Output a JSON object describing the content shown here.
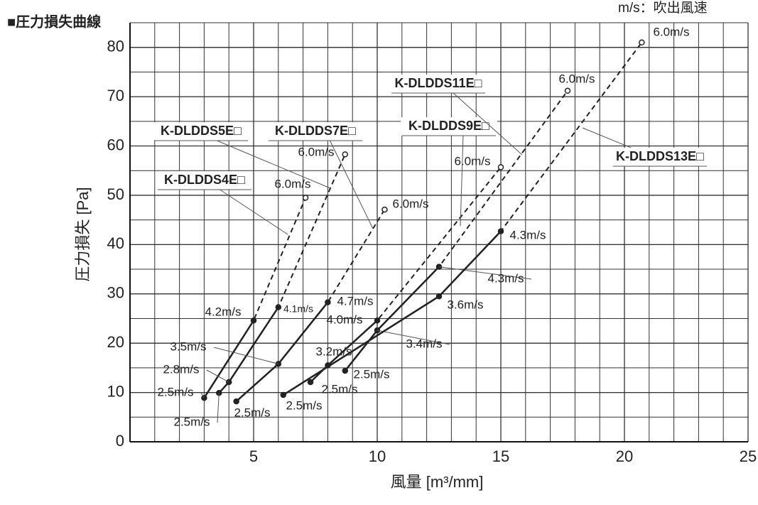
{
  "chart_data": {
    "type": "line",
    "title": "■圧力損失曲線",
    "subtitle": "m/s：吹出風速",
    "x_label": "風量 [m³/mm]",
    "y_label": "圧力損失 [Pa]",
    "xlim": [
      0,
      25
    ],
    "xticks": [
      5,
      10,
      15,
      20,
      25
    ],
    "ylim": [
      0,
      85
    ],
    "yticks": [
      0,
      10,
      20,
      30,
      40,
      50,
      60,
      70,
      80
    ],
    "grid": true,
    "series": [
      {
        "name": "K-DLDDS4E□",
        "color": "#222222",
        "x": [
          3.0,
          5.0,
          7.1
        ],
        "values": [
          8.9,
          24.6,
          49.5
        ],
        "point_labels": [
          "2.5m/s",
          "4.2m/s",
          "6.0m/s"
        ]
      },
      {
        "name": "K-DLDDS5E□",
        "color": "#222222",
        "x": [
          3.6,
          4.0,
          6.0,
          8.7
        ],
        "values": [
          9.9,
          12.1,
          27.3,
          58.3
        ],
        "point_labels": [
          "2.5m/s",
          "2.8m/s",
          "4.1m/s",
          "6.0m/s"
        ]
      },
      {
        "name": "K-DLDDS7E□",
        "color": "#222222",
        "x": [
          4.3,
          6.0,
          8.0,
          10.3
        ],
        "values": [
          8.2,
          15.8,
          28.3,
          47.1
        ],
        "point_labels": [
          "2.5m/s",
          "3.5m/s",
          "4.7m/s",
          "6.0m/s"
        ]
      },
      {
        "name": "K-DLDDS9E□",
        "color": "#222222",
        "x": [
          7.3,
          8.0,
          10.0,
          15.0
        ],
        "values": [
          12.1,
          15.5,
          24.6,
          55.7
        ],
        "point_labels": [
          "2.5m/s",
          "3.2m/s",
          "4.0m/s",
          "6.0m/s"
        ]
      },
      {
        "name": "K-DLDDS11E□",
        "color": "#222222",
        "x": [
          8.7,
          10.0,
          12.5,
          17.7
        ],
        "values": [
          14.4,
          22.6,
          35.5,
          71.2
        ],
        "point_labels": [
          "2.5m/s",
          "3.4m/s",
          "4.3m/s",
          "6.0m/s"
        ]
      },
      {
        "name": "K-DLDDS13E□",
        "color": "#222222",
        "x": [
          6.2,
          12.5,
          15.0,
          20.7
        ],
        "values": [
          9.5,
          29.5,
          42.7,
          81.0
        ],
        "point_labels": [
          "2.5m/s",
          "3.6m/s",
          "4.3m/s",
          "6.0m/s"
        ]
      }
    ]
  }
}
